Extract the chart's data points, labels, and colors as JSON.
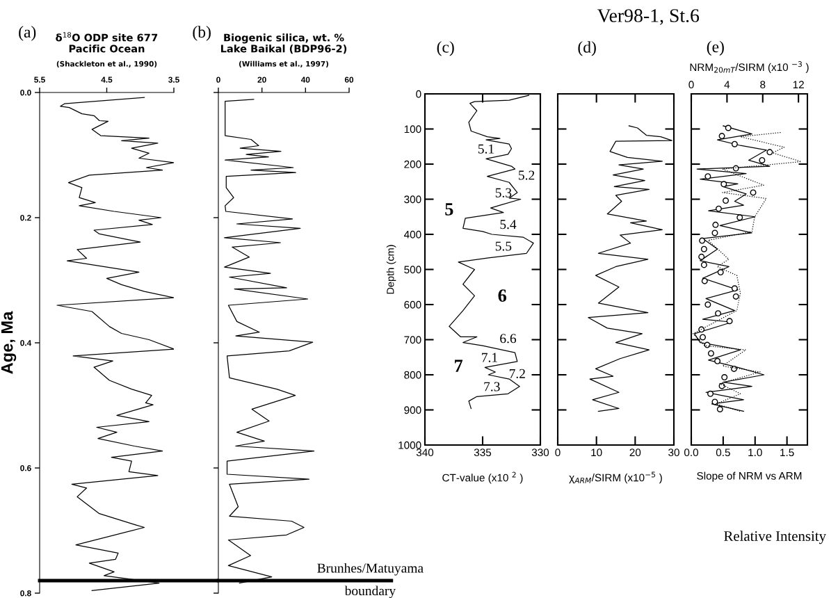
{
  "chart_data": [
    {
      "type": "line",
      "title": "δ$^{18}$O ODP site 677\nPacific Ocean",
      "subtitle": "(Shackleton et al., 1990)",
      "ylabel": "Age, Ma",
      "annotations": [
        "(a)"
      ],
      "xlim": [
        5.5,
        3.5
      ],
      "xticks": [
        5.5,
        4.5,
        3.5
      ],
      "ylim": [
        0.8,
        0.0
      ],
      "yticks": [
        {
          "value": 0.0,
          "label": "0.0"
        },
        {
          "value": 0.2,
          "label": "0.2"
        },
        {
          "value": 0.4,
          "label": "0.4"
        },
        {
          "value": 0.6,
          "label": "0.6"
        },
        {
          "value": 0.8,
          "label": "0.8"
        }
      ],
      "ref_lines": [
        {
          "axis": "y",
          "value": 0.78,
          "color": "#000000"
        }
      ],
      "series": [
        {
          "color": "#000000",
          "x": [
            3.94,
            5.13,
            5.19,
            5.06,
            4.87,
            4.69,
            4.61,
            4.48,
            4.72,
            4.59,
            3.87,
            4.28,
            3.74,
            4.13,
            3.87,
            4.02,
            3.5,
            3.91,
            3.67,
            4.76,
            5.07,
            4.87,
            4.91,
            4.67,
            4.91,
            4.39,
            3.69,
            4.02,
            3.82,
            4.69,
            4.61,
            4.0,
            4.94,
            4.8,
            5.09,
            4.02,
            4.5,
            4.28,
            3.94,
            3.5,
            5.24,
            4.72,
            4.46,
            4.28,
            3.87,
            3.5,
            5.0,
            4.41,
            4.69,
            4.46,
            4.13,
            3.83,
            3.92,
            3.81,
            4.35,
            3.87,
            4.65,
            4.35,
            4.63,
            4.09,
            3.67,
            4.43,
            4.13,
            4.17,
            3.74,
            5.02,
            4.8,
            4.94,
            4.61,
            4.07,
            3.94,
            4.96,
            4.33,
            4.37,
            4.76,
            4.39,
            4.54,
            4.13,
            3.72,
            4.72
          ],
          "values": [
            0.008,
            0.018,
            0.022,
            0.024,
            0.034,
            0.037,
            0.045,
            0.046,
            0.059,
            0.069,
            0.073,
            0.077,
            0.081,
            0.089,
            0.097,
            0.105,
            0.112,
            0.12,
            0.124,
            0.132,
            0.144,
            0.152,
            0.168,
            0.176,
            0.181,
            0.19,
            0.2,
            0.204,
            0.211,
            0.22,
            0.226,
            0.239,
            0.251,
            0.265,
            0.269,
            0.287,
            0.297,
            0.307,
            0.318,
            0.328,
            0.34,
            0.35,
            0.374,
            0.385,
            0.395,
            0.41,
            0.421,
            0.429,
            0.439,
            0.46,
            0.474,
            0.484,
            0.496,
            0.499,
            0.516,
            0.526,
            0.535,
            0.543,
            0.553,
            0.565,
            0.573,
            0.583,
            0.589,
            0.606,
            0.612,
            0.626,
            0.632,
            0.646,
            0.673,
            0.691,
            0.695,
            0.723,
            0.736,
            0.746,
            0.752,
            0.766,
            0.772,
            0.778,
            0.784,
            0.796
          ]
        }
      ]
    },
    {
      "type": "line",
      "title": "Biogenic silica, wt. %\nLake Baikal (BDP96-2)",
      "subtitle": "(Williams et al., 1997)",
      "annotations": [
        "(b)"
      ],
      "tick_labels": "x",
      "xlim": [
        0,
        60
      ],
      "xticks": [
        0,
        20,
        40,
        60
      ],
      "ylim": [
        0.8,
        0.0
      ],
      "yticks": [
        {
          "value": 0.0,
          "label": null
        },
        {
          "value": 0.2,
          "label": null
        },
        {
          "value": 0.4,
          "label": null
        },
        {
          "value": 0.6,
          "label": null
        },
        {
          "value": 0.8,
          "label": null
        }
      ],
      "ref_lines": [
        {
          "axis": "y",
          "value": 0.78,
          "label": "Brunhes/Matuyama\nboundary",
          "color": "#000000"
        }
      ],
      "series": [
        {
          "color": "#000000",
          "x": [
            16.2,
            3.1,
            3.1,
            15,
            18.5,
            10,
            28.7,
            12.8,
            23,
            3.1,
            34.4,
            15,
            35.5,
            3.6,
            3.6,
            7,
            3.1,
            3.4,
            34,
            8.5,
            37.6,
            2.8,
            28.5,
            6.3,
            14.2,
            2.8,
            23.9,
            5.1,
            31.3,
            7.4,
            41,
            4.6,
            8.5,
            18.8,
            8,
            43.3,
            32.5,
            4,
            5.1,
            26.8,
            35.3,
            15.4,
            23.3,
            8.5,
            21.1,
            7.9,
            43.9,
            4,
            4,
            41.6,
            5.1,
            9.1,
            5.1,
            33.6,
            39.3,
            31.3,
            4.6,
            14.8,
            4.6,
            24.5,
            9.7
          ],
          "values": [
            0.011,
            0.014,
            0.069,
            0.075,
            0.085,
            0.089,
            0.094,
            0.099,
            0.103,
            0.108,
            0.12,
            0.124,
            0.128,
            0.134,
            0.152,
            0.168,
            0.181,
            0.19,
            0.202,
            0.21,
            0.217,
            0.232,
            0.24,
            0.247,
            0.263,
            0.279,
            0.289,
            0.295,
            0.312,
            0.314,
            0.33,
            0.34,
            0.366,
            0.383,
            0.389,
            0.399,
            0.413,
            0.421,
            0.456,
            0.474,
            0.484,
            0.506,
            0.525,
            0.543,
            0.557,
            0.565,
            0.573,
            0.589,
            0.61,
            0.618,
            0.626,
            0.662,
            0.677,
            0.685,
            0.695,
            0.707,
            0.715,
            0.74,
            0.756,
            0.774,
            0.784
          ]
        }
      ]
    },
    {
      "type": "line",
      "xlabel": "CT-value (x10 $^{2}$ )",
      "ylabel": "Depth (cm)",
      "annotations": [
        "(c)",
        "5.1",
        "5.2",
        "5.3",
        "5",
        "5.4",
        "5.5",
        "6",
        "6.6",
        "7.1",
        "7",
        "7.2",
        "7.3"
      ],
      "xlim": [
        340,
        330
      ],
      "xticks": [
        340,
        335,
        330
      ],
      "ylim": [
        1000,
        0
      ],
      "yticks": [
        0,
        100,
        200,
        300,
        400,
        500,
        600,
        700,
        800,
        900,
        1000
      ],
      "series": [
        {
          "color": "#000000",
          "x": [
            331.0,
            332.7,
            335.7,
            336.1,
            335.5,
            336.2,
            336.0,
            334.6,
            333.5,
            334.7,
            332.7,
            332.5,
            332.8,
            334.7,
            332.5,
            332.2,
            334.6,
            332.7,
            332.0,
            332.7,
            331.7,
            333.5,
            334.3,
            333.2,
            336.5,
            336.7,
            335.0,
            334.2,
            331.5,
            330.6,
            331.2,
            334.5,
            337.1,
            335.7,
            336.7,
            335.7,
            336.7,
            337.9,
            336.9,
            335.5,
            336.7,
            335.0,
            332.2,
            332.0,
            334.8,
            333.9,
            334.5,
            332.7,
            331.8,
            332.8,
            335.5,
            336.2,
            336.0
          ],
          "values": [
            4,
            18,
            22,
            27,
            48,
            81,
            106,
            122,
            127,
            131,
            143,
            156,
            172,
            185,
            206,
            214,
            235,
            252,
            281,
            297,
            300,
            317,
            325,
            338,
            354,
            383,
            392,
            400,
            408,
            425,
            454,
            467,
            479,
            500,
            542,
            575,
            617,
            662,
            692,
            692,
            708,
            717,
            737,
            762,
            779,
            792,
            800,
            812,
            833,
            854,
            862,
            875,
            896
          ]
        }
      ]
    },
    {
      "type": "line",
      "xlabel": "χ$_{ARM}$/SIRM (x10$^{−5}$ )",
      "annotations": [
        "(d)",
        "Ver98-1, St.6"
      ],
      "tick_labels": "x",
      "xlim": [
        0,
        30
      ],
      "xticks": [
        0,
        10,
        20,
        30
      ],
      "ylim": [
        1000,
        0
      ],
      "yticks": [
        {
          "value": 100,
          "label": null
        },
        {
          "value": 200,
          "label": null
        },
        {
          "value": 300,
          "label": null
        },
        {
          "value": 400,
          "label": null
        },
        {
          "value": 500,
          "label": null
        },
        {
          "value": 600,
          "label": null
        },
        {
          "value": 700,
          "label": null
        },
        {
          "value": 800,
          "label": null
        },
        {
          "value": 900,
          "label": null
        }
      ],
      "series": [
        {
          "color": "#000000",
          "x": [
            18.4,
            20.6,
            22.9,
            26.6,
            29.5,
            15,
            13.5,
            18,
            27,
            15.8,
            22.1,
            14.3,
            22.5,
            14.6,
            23.6,
            15,
            16.5,
            12.8,
            22.9,
            18.8,
            27,
            16.1,
            18.8,
            10.5,
            23.3,
            15,
            9.8,
            15.8,
            10.5,
            23.3,
            7.9,
            12.8,
            21.8,
            15,
            23.6,
            16.1,
            9.8,
            14.3,
            8.3,
            15.8,
            9,
            15.8,
            10.5
          ],
          "values": [
            91,
            97,
            118,
            122,
            133,
            135,
            164,
            181,
            192,
            202,
            214,
            231,
            247,
            264,
            272,
            289,
            306,
            342,
            362,
            367,
            387,
            402,
            425,
            454,
            471,
            492,
            517,
            550,
            596,
            623,
            637,
            667,
            683,
            708,
            729,
            754,
            783,
            804,
            812,
            850,
            871,
            896,
            904
          ]
        }
      ]
    },
    {
      "type": "line",
      "xlabel": "Slope of NRM vs ARM",
      "x2label": "NRM$_{20mT}$/SIRM (x10 $^{−3}$ )",
      "annotations": [
        "(e)",
        "Relative Intensity"
      ],
      "tick_labels": "x",
      "xlim": [
        0,
        1.82
      ],
      "xticks": [
        {
          "value": 0,
          "label": "0.0"
        },
        {
          "value": 0.5,
          "label": "0.5"
        },
        {
          "value": 1.0,
          "label": "1.0"
        },
        {
          "value": 1.5,
          "label": "1.5"
        }
      ],
      "x2lim": [
        0,
        13
      ],
      "x2ticks": [
        0,
        4,
        8,
        12
      ],
      "ylim": [
        1000,
        0
      ],
      "yticks": [
        {
          "value": 100,
          "label": null
        },
        {
          "value": 200,
          "label": null
        },
        {
          "value": 300,
          "label": null
        },
        {
          "value": 400,
          "label": null
        },
        {
          "value": 500,
          "label": null
        },
        {
          "value": 600,
          "label": null
        },
        {
          "value": 700,
          "label": null
        },
        {
          "value": 800,
          "label": null
        },
        {
          "value": 900,
          "label": null
        }
      ],
      "series": [
        {
          "color": "#000000",
          "line_style": "dotted",
          "axis": "x2",
          "x": [
            10.0,
            5.5,
            10.4,
            9.1,
            12.3,
            3.5,
            8.1,
            3.5,
            8.4,
            7.1,
            6.8,
            1.9,
            4.2,
            2.9,
            5.1,
            5.5,
            5.1,
            0.2,
            1.5,
            6.1,
            3.5,
            7.7,
            3.2,
            5.5,
            2.8,
            5.5
          ],
          "values": [
            110,
            122,
            152,
            168,
            193,
            214,
            260,
            281,
            298,
            350,
            392,
            417,
            471,
            492,
            517,
            567,
            617,
            683,
            717,
            729,
            775,
            792,
            825,
            854,
            883,
            904
          ]
        },
        {
          "color": "#000000",
          "line_style": "solid",
          "x": [
            0.5,
            0.95,
            0.41,
            0.77,
            1.18,
            0.9,
            1.23,
            0.09,
            0.86,
            0.14,
            0.73,
            0.5,
            0.86,
            0.68,
            0.82,
            0.27,
            1.0,
            0.45,
            0.95,
            0.18,
            0.41,
            0.14,
            0.59,
            0.18,
            0.73,
            0.23,
            0.68,
            0.18,
            0.64,
            0.05,
            0.14,
            0.77,
            0.27,
            0.73,
            1.14,
            0.5,
            0.95,
            0.23,
            0.82,
            0.32,
            0.82
          ],
          "values": [
            91,
            114,
            131,
            147,
            160,
            189,
            206,
            214,
            227,
            243,
            256,
            264,
            285,
            306,
            317,
            333,
            350,
            375,
            396,
            412,
            442,
            475,
            492,
            525,
            558,
            583,
            617,
            642,
            650,
            683,
            708,
            729,
            758,
            779,
            800,
            821,
            833,
            850,
            871,
            883,
            904
          ]
        },
        {
          "type": "scatter",
          "marker": "circle",
          "color": "#000000",
          "x": [
            0.58,
            0.48,
            0.68,
            1.23,
            1.11,
            0.7,
            0.26,
            0.51,
            0.97,
            0.54,
            0.43,
            0.76,
            0.38,
            0.37,
            0.17,
            0.2,
            0.16,
            0.2,
            0.46,
            0.21,
            0.68,
            0.7,
            0.26,
            0.42,
            0.6,
            0.16,
            0.18,
            0.25,
            0.31,
            0.41,
            0.67,
            0.52,
            0.48,
            0.3,
            0.37,
            0.45
          ],
          "values": [
            97,
            120,
            143,
            166,
            189,
            212,
            235,
            257,
            281,
            304,
            327,
            352,
            373,
            396,
            418,
            442,
            464,
            487,
            508,
            533,
            554,
            577,
            600,
            625,
            647,
            671,
            693,
            715,
            739,
            761,
            783,
            807,
            832,
            854,
            877,
            898
          ]
        }
      ]
    }
  ]
}
